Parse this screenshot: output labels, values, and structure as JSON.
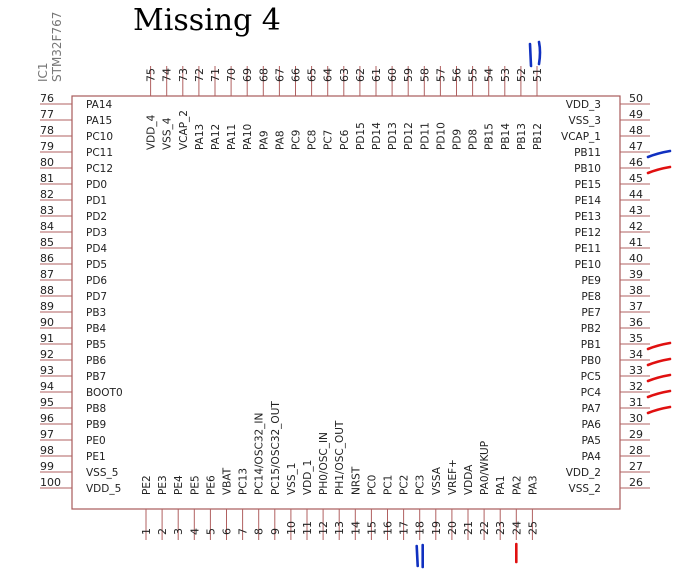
{
  "annotation": {
    "text": "Missing 4"
  },
  "chip": {
    "designator": "IC1",
    "part": "STM32F767"
  },
  "pins": {
    "bottom": [
      {
        "num": "1",
        "name": "PE2"
      },
      {
        "num": "2",
        "name": "PE3"
      },
      {
        "num": "3",
        "name": "PE4"
      },
      {
        "num": "4",
        "name": "PE5"
      },
      {
        "num": "5",
        "name": "PE6"
      },
      {
        "num": "6",
        "name": "VBAT"
      },
      {
        "num": "7",
        "name": "PC13"
      },
      {
        "num": "8",
        "name": "PC14/OSC32_IN"
      },
      {
        "num": "9",
        "name": "PC15/OSC32_OUT"
      },
      {
        "num": "10",
        "name": "VSS_1"
      },
      {
        "num": "11",
        "name": "VDD_1"
      },
      {
        "num": "12",
        "name": "PH0/OSC_IN"
      },
      {
        "num": "13",
        "name": "PH1/OSC_OUT"
      },
      {
        "num": "14",
        "name": "NRST"
      },
      {
        "num": "15",
        "name": "PC0"
      },
      {
        "num": "16",
        "name": "PC1"
      },
      {
        "num": "17",
        "name": "PC2"
      },
      {
        "num": "18",
        "name": "PC3"
      },
      {
        "num": "19",
        "name": "VSSA"
      },
      {
        "num": "20",
        "name": "VREF+"
      },
      {
        "num": "21",
        "name": "VDDA"
      },
      {
        "num": "22",
        "name": "PA0/WKUP"
      },
      {
        "num": "23",
        "name": "PA1"
      },
      {
        "num": "24",
        "name": "PA2"
      },
      {
        "num": "25",
        "name": "PA3"
      }
    ],
    "right": [
      {
        "num": "26",
        "name": "VSS_2"
      },
      {
        "num": "27",
        "name": "VDD_2"
      },
      {
        "num": "28",
        "name": "PA4"
      },
      {
        "num": "29",
        "name": "PA5"
      },
      {
        "num": "30",
        "name": "PA6"
      },
      {
        "num": "31",
        "name": "PA7"
      },
      {
        "num": "32",
        "name": "PC4"
      },
      {
        "num": "33",
        "name": "PC5"
      },
      {
        "num": "34",
        "name": "PB0"
      },
      {
        "num": "35",
        "name": "PB1"
      },
      {
        "num": "36",
        "name": "PB2"
      },
      {
        "num": "37",
        "name": "PE7"
      },
      {
        "num": "38",
        "name": "PE8"
      },
      {
        "num": "39",
        "name": "PE9"
      },
      {
        "num": "40",
        "name": "PE10"
      },
      {
        "num": "41",
        "name": "PE11"
      },
      {
        "num": "42",
        "name": "PE12"
      },
      {
        "num": "43",
        "name": "PE13"
      },
      {
        "num": "44",
        "name": "PE14"
      },
      {
        "num": "45",
        "name": "PE15"
      },
      {
        "num": "46",
        "name": "PB10"
      },
      {
        "num": "47",
        "name": "PB11"
      },
      {
        "num": "48",
        "name": "VCAP_1"
      },
      {
        "num": "49",
        "name": "VSS_3"
      },
      {
        "num": "50",
        "name": "VDD_3"
      }
    ],
    "top": [
      {
        "num": "51",
        "name": "PB12"
      },
      {
        "num": "52",
        "name": "PB13"
      },
      {
        "num": "53",
        "name": "PB14"
      },
      {
        "num": "54",
        "name": "PB15"
      },
      {
        "num": "55",
        "name": "PD8"
      },
      {
        "num": "56",
        "name": "PD9"
      },
      {
        "num": "57",
        "name": "PD10"
      },
      {
        "num": "58",
        "name": "PD11"
      },
      {
        "num": "59",
        "name": "PD12"
      },
      {
        "num": "60",
        "name": "PD13"
      },
      {
        "num": "61",
        "name": "PD14"
      },
      {
        "num": "62",
        "name": "PD15"
      },
      {
        "num": "63",
        "name": "PC6"
      },
      {
        "num": "64",
        "name": "PC7"
      },
      {
        "num": "65",
        "name": "PC8"
      },
      {
        "num": "66",
        "name": "PC9"
      },
      {
        "num": "67",
        "name": "PA8"
      },
      {
        "num": "68",
        "name": "PA9"
      },
      {
        "num": "69",
        "name": "PA10"
      },
      {
        "num": "70",
        "name": "PA11"
      },
      {
        "num": "71",
        "name": "PA12"
      },
      {
        "num": "72",
        "name": "PA13"
      },
      {
        "num": "73",
        "name": "VCAP_2"
      },
      {
        "num": "74",
        "name": "VSS_4"
      },
      {
        "num": "75",
        "name": "VDD_4"
      }
    ],
    "left": [
      {
        "num": "76",
        "name": "PA14"
      },
      {
        "num": "77",
        "name": "PA15"
      },
      {
        "num": "78",
        "name": "PC10"
      },
      {
        "num": "79",
        "name": "PC11"
      },
      {
        "num": "80",
        "name": "PC12"
      },
      {
        "num": "81",
        "name": "PD0"
      },
      {
        "num": "82",
        "name": "PD1"
      },
      {
        "num": "83",
        "name": "PD2"
      },
      {
        "num": "84",
        "name": "PD3"
      },
      {
        "num": "85",
        "name": "PD4"
      },
      {
        "num": "86",
        "name": "PD5"
      },
      {
        "num": "87",
        "name": "PD6"
      },
      {
        "num": "88",
        "name": "PD7"
      },
      {
        "num": "89",
        "name": "PB3"
      },
      {
        "num": "90",
        "name": "PB4"
      },
      {
        "num": "91",
        "name": "PB5"
      },
      {
        "num": "92",
        "name": "PB6"
      },
      {
        "num": "93",
        "name": "PB7"
      },
      {
        "num": "94",
        "name": "BOOT0"
      },
      {
        "num": "95",
        "name": "PB8"
      },
      {
        "num": "96",
        "name": "PB9"
      },
      {
        "num": "97",
        "name": "PE0"
      },
      {
        "num": "98",
        "name": "PE1"
      },
      {
        "num": "99",
        "name": "VSS_5"
      },
      {
        "num": "100",
        "name": "VDD_5"
      }
    ]
  },
  "marks": [
    {
      "pin": "51",
      "color": "#1030c0"
    },
    {
      "pin": "47",
      "color": "#1030c0"
    },
    {
      "pin": "46",
      "color": "#e01010"
    },
    {
      "pin": "35",
      "color": "#e01010"
    },
    {
      "pin": "34",
      "color": "#e01010"
    },
    {
      "pin": "33",
      "color": "#e01010"
    },
    {
      "pin": "32",
      "color": "#e01010"
    },
    {
      "pin": "31",
      "color": "#e01010"
    },
    {
      "pin": "18",
      "color": "#1030c0"
    },
    {
      "pin": "24",
      "color": "#e01010"
    }
  ]
}
